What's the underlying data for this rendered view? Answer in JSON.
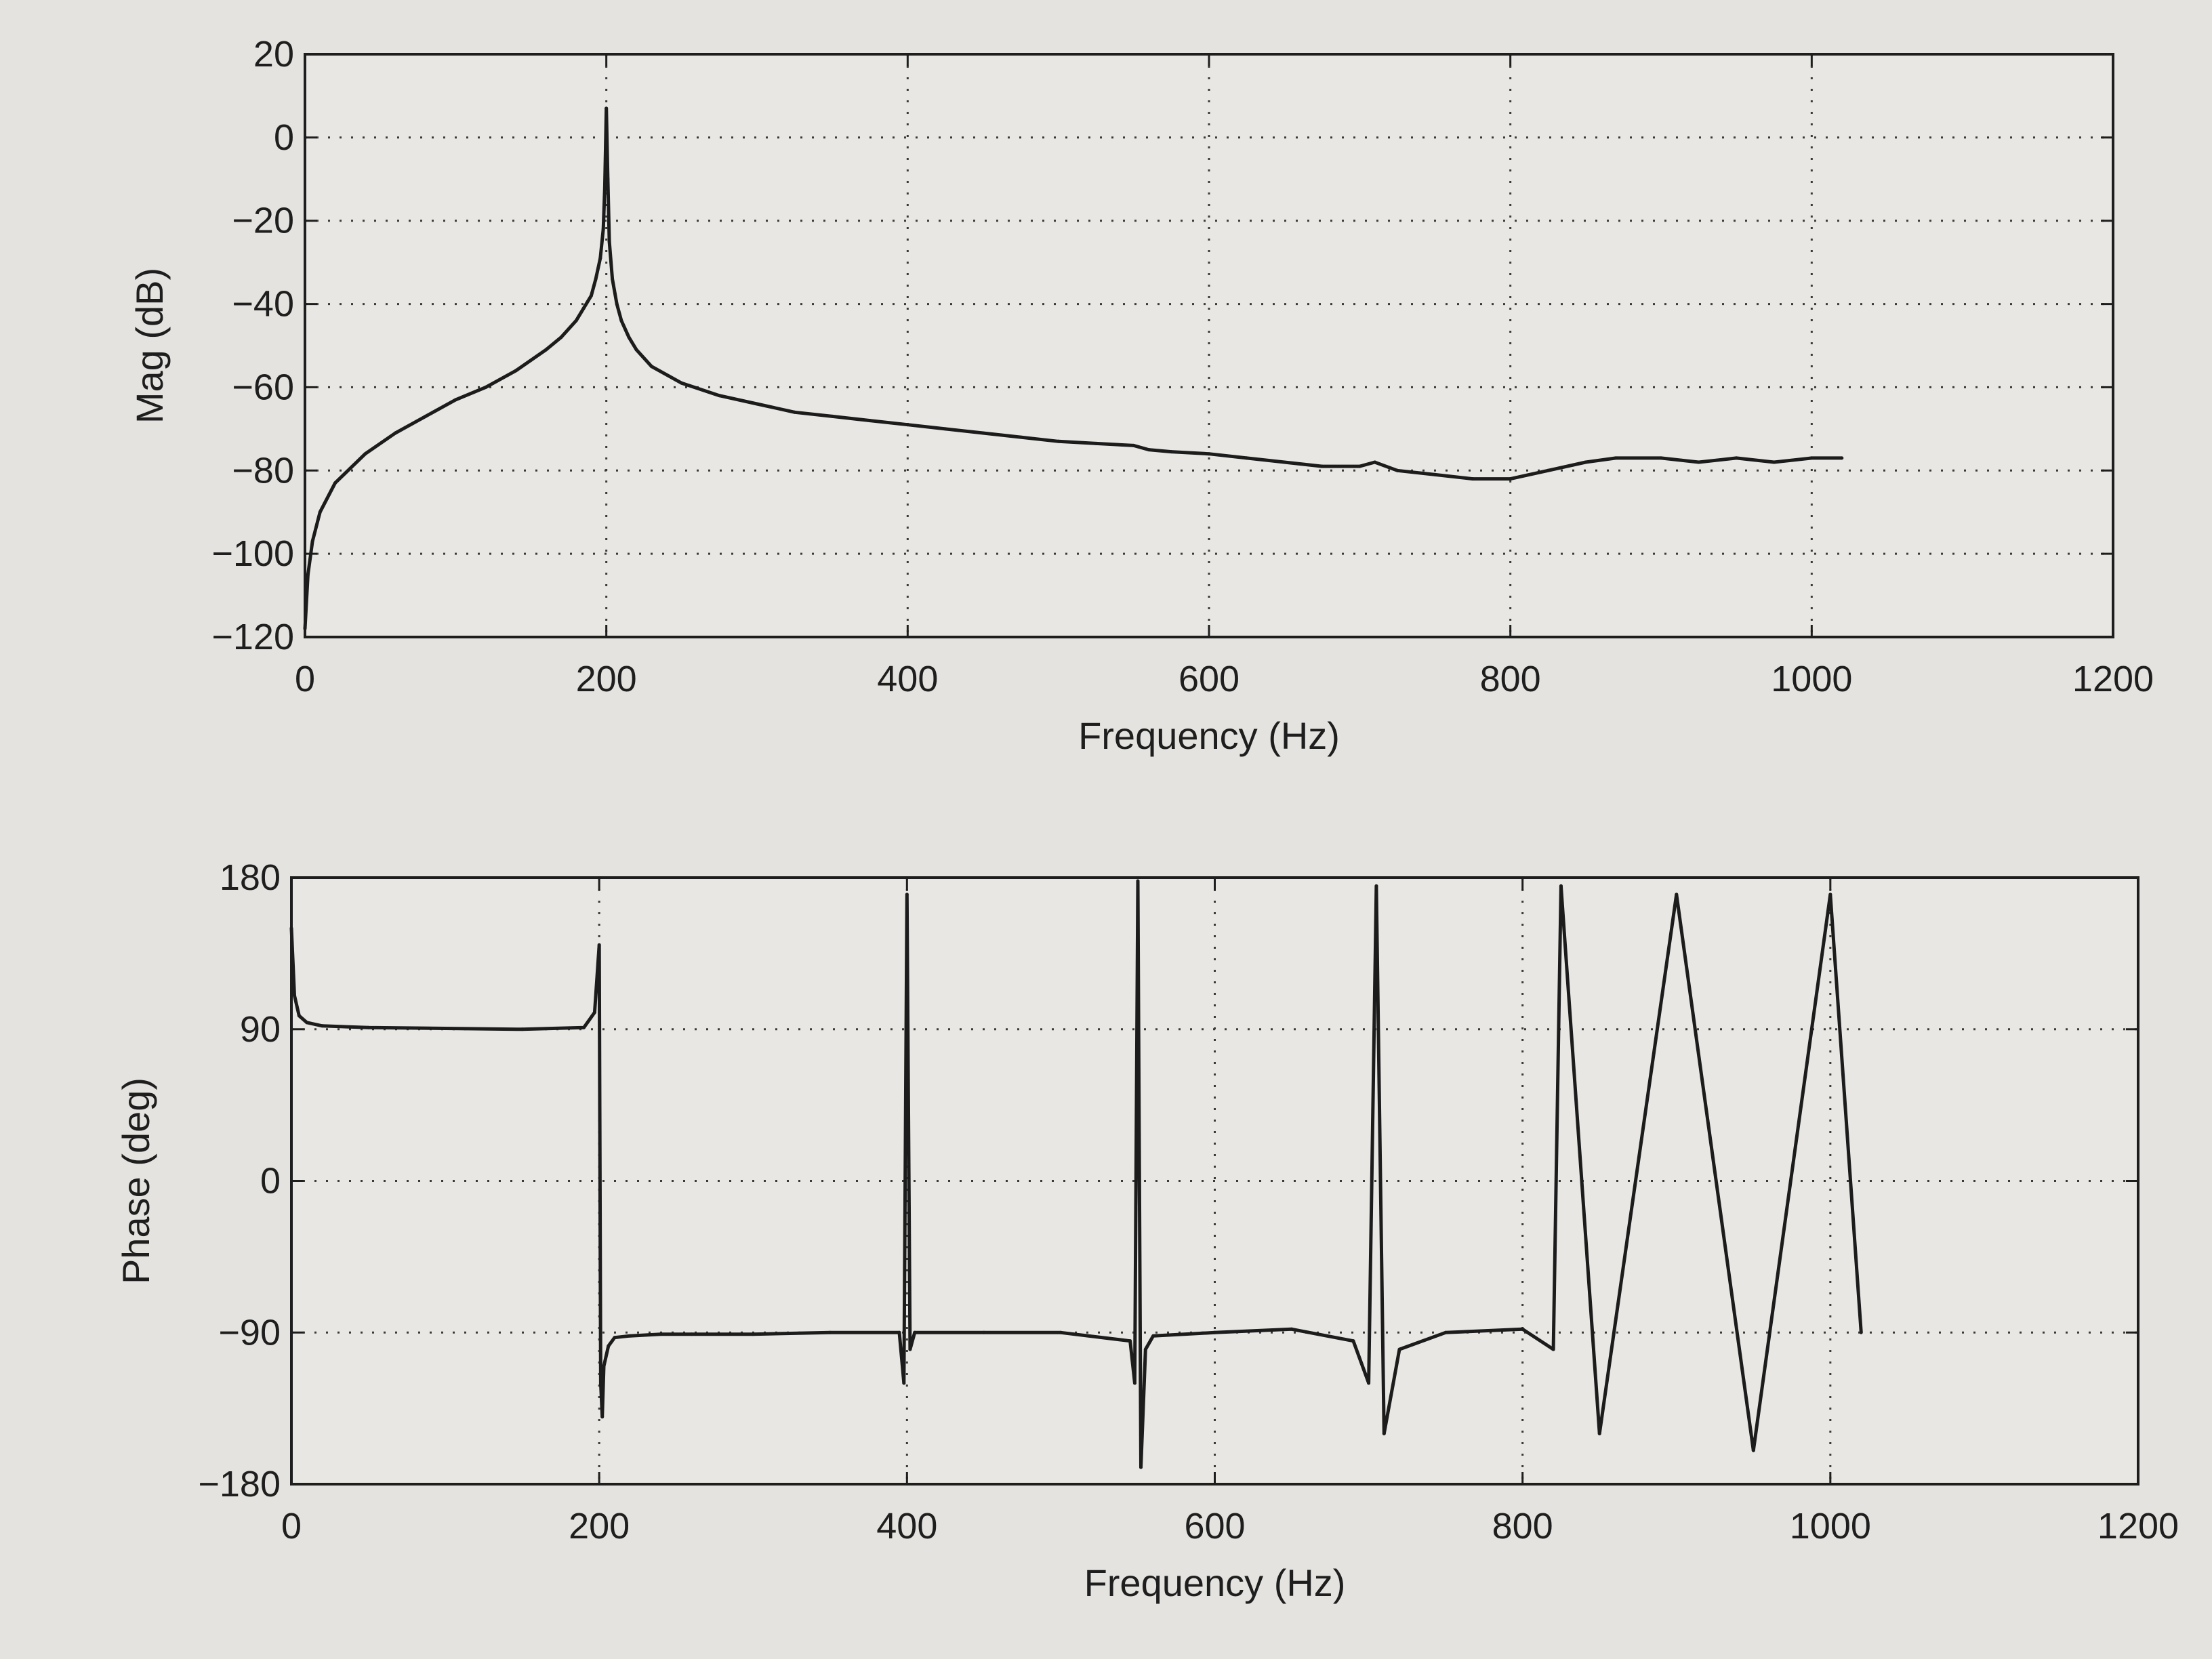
{
  "chart_data": [
    {
      "type": "line",
      "title": "",
      "xlabel": "Frequency (Hz)",
      "ylabel": "Mag (dB)",
      "xlim": [
        0,
        1200
      ],
      "ylim": [
        -120,
        20
      ],
      "xticks": [
        0,
        200,
        400,
        600,
        800,
        1000,
        1200
      ],
      "yticks": [
        20,
        0,
        -20,
        -40,
        -60,
        -80,
        -100,
        -120
      ],
      "xtick_labels": [
        "0",
        "200",
        "400",
        "600",
        "800",
        "1000",
        "1200"
      ],
      "ytick_labels": [
        "20",
        "0",
        "−20",
        "−40",
        "−60",
        "−80",
        "−100",
        "−120"
      ],
      "grid": true,
      "line_color": "#1c1c1c",
      "series": [
        {
          "x": [
            0,
            2,
            5,
            10,
            20,
            40,
            60,
            80,
            100,
            120,
            140,
            160,
            170,
            180,
            185,
            190,
            193,
            196,
            198,
            199,
            200,
            201,
            202,
            204,
            207,
            210,
            215,
            220,
            230,
            250,
            275,
            300,
            325,
            350,
            375,
            400,
            425,
            450,
            475,
            500,
            525,
            550,
            560,
            575,
            600,
            625,
            650,
            675,
            700,
            710,
            725,
            750,
            775,
            800,
            825,
            850,
            870,
            900,
            925,
            950,
            975,
            1000,
            1020
          ],
          "y": [
            -118,
            -105,
            -97,
            -90,
            -83,
            -76,
            -71,
            -67,
            -63,
            -60,
            -56,
            -51,
            -48,
            -44,
            -41,
            -38,
            -34,
            -29,
            -22,
            -12,
            7,
            -10,
            -25,
            -34,
            -40,
            -44,
            -48,
            -51,
            -55,
            -59,
            -62,
            -64,
            -66,
            -67,
            -68,
            -69,
            -70,
            -71,
            -72,
            -73,
            -73.5,
            -74,
            -75,
            -75.5,
            -76,
            -77,
            -78,
            -79,
            -79,
            -78,
            -80,
            -81,
            -82,
            -82,
            -80,
            -78,
            -77,
            -77,
            -78,
            -77,
            -78,
            -77,
            -77
          ]
        }
      ]
    },
    {
      "type": "line",
      "title": "",
      "xlabel": "Frequency (Hz)",
      "ylabel": "Phase (deg)",
      "xlim": [
        0,
        1200
      ],
      "ylim": [
        -180,
        180
      ],
      "xticks": [
        0,
        200,
        400,
        600,
        800,
        1000,
        1200
      ],
      "yticks": [
        180,
        90,
        0,
        -90,
        -180
      ],
      "xtick_labels": [
        "0",
        "200",
        "400",
        "600",
        "800",
        "1000",
        "1200"
      ],
      "ytick_labels": [
        "180",
        "90",
        "0",
        "−90",
        "−180"
      ],
      "grid": true,
      "line_color": "#1c1c1c",
      "series": [
        {
          "x": [
            0,
            2,
            5,
            10,
            20,
            50,
            100,
            150,
            190,
            197,
            200,
            201,
            202,
            203,
            206,
            210,
            220,
            240,
            260,
            300,
            350,
            395,
            398,
            400,
            402,
            405,
            450,
            500,
            545,
            548,
            550,
            552,
            555,
            560,
            600,
            650,
            690,
            700,
            705,
            710,
            720,
            750,
            800,
            820,
            825,
            850,
            900,
            950,
            1000,
            1020
          ],
          "y": [
            150,
            110,
            98,
            94,
            92,
            91,
            90.5,
            90,
            91,
            100,
            140,
            -120,
            -140,
            -110,
            -98,
            -93,
            -92,
            -91,
            -91,
            -91,
            -90,
            -90,
            -120,
            170,
            -100,
            -90,
            -90,
            -90,
            -95,
            -120,
            178,
            -170,
            -100,
            -92,
            -90,
            -88,
            -95,
            -120,
            175,
            -150,
            -100,
            -90,
            -88,
            -100,
            175,
            -150,
            170,
            -160,
            170,
            -90
          ]
        }
      ]
    }
  ]
}
